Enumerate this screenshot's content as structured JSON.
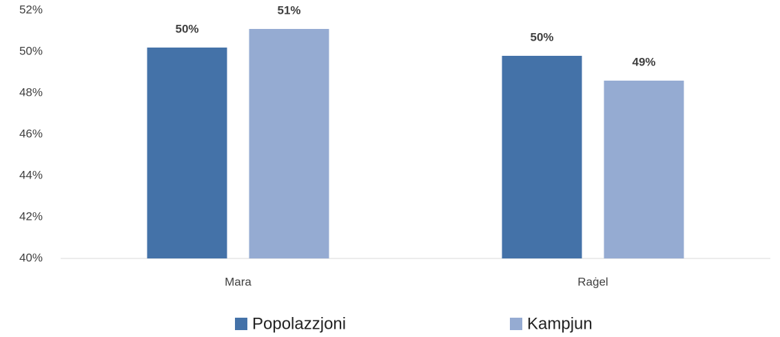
{
  "chart_data": {
    "type": "bar",
    "categories": [
      "Mara",
      "Raġel"
    ],
    "series": [
      {
        "name": "Popolazzjoni",
        "color": "#4472a8",
        "values": [
          50.2,
          49.8
        ],
        "value_labels": [
          "50%",
          "50%"
        ]
      },
      {
        "name": "Kampjun",
        "color": "#95abd2",
        "values": [
          51.1,
          48.6
        ],
        "value_labels": [
          "51%",
          "49%"
        ]
      }
    ],
    "ylim": [
      40,
      52
    ],
    "yticks": [
      {
        "value": 40,
        "label": "40%"
      },
      {
        "value": 42,
        "label": "42%"
      },
      {
        "value": 44,
        "label": "44%"
      },
      {
        "value": 46,
        "label": "46%"
      },
      {
        "value": 48,
        "label": "48%"
      },
      {
        "value": 50,
        "label": "50%"
      },
      {
        "value": 52,
        "label": "52%"
      }
    ],
    "grid": false,
    "legend": "bottom"
  }
}
